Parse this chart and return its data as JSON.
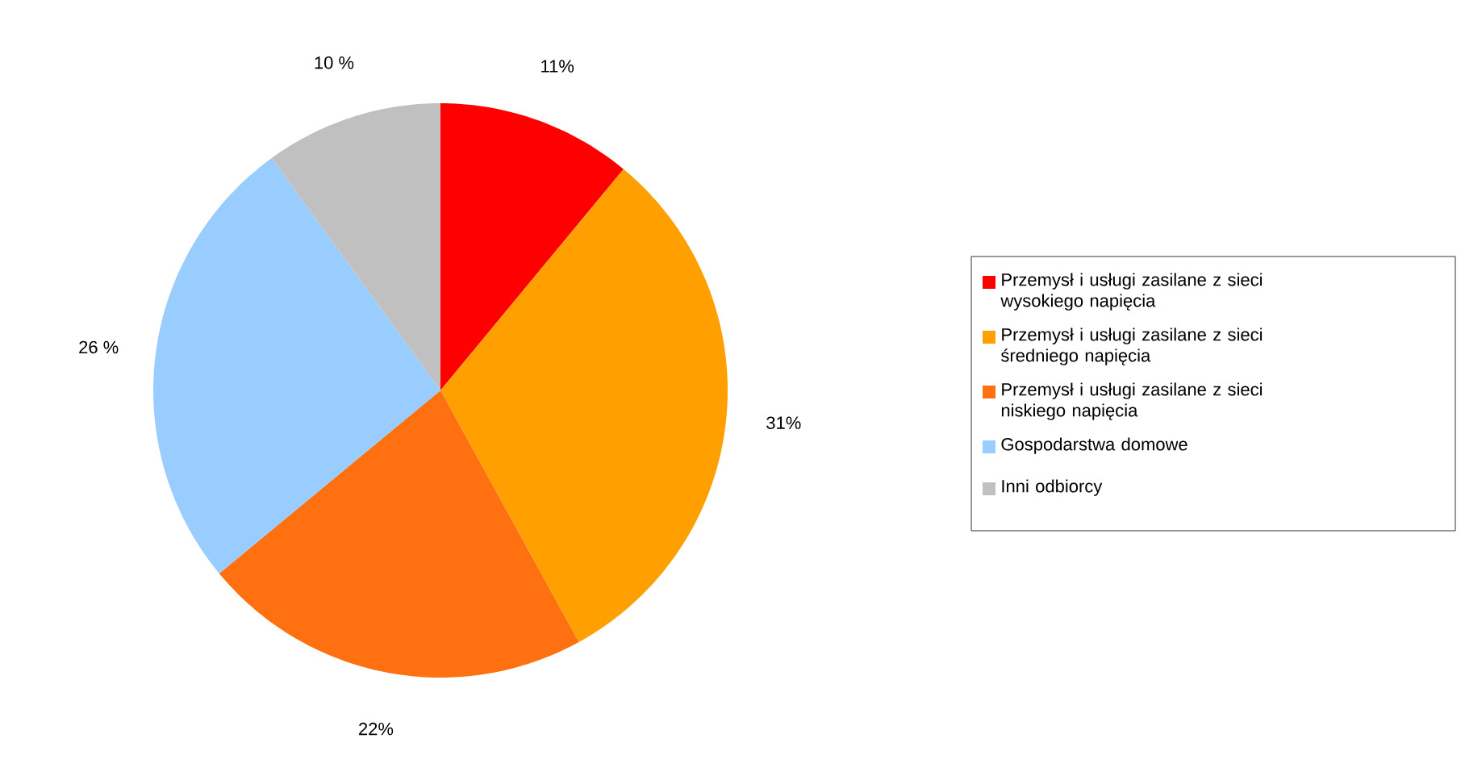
{
  "chart_data": {
    "type": "pie",
    "categories": [
      "Przemysł i usługi zasilane z sieci wysokiego napięcia",
      "Przemysł i usługi zasilane z sieci średniego napięcia",
      "Przemysł i usługi zasilane z sieci niskiego napięcia",
      "Gospodarstwa domowe",
      "Inni odbiorcy"
    ],
    "values": [
      11,
      31,
      22,
      26,
      10
    ],
    "value_labels": [
      "11%",
      "31%",
      "22%",
      "26 %",
      "10 %"
    ],
    "colors": [
      "#ff0000",
      "#ffa000",
      "#ff7010",
      "#99ccff",
      "#c0c0c0"
    ],
    "legend": "right"
  }
}
